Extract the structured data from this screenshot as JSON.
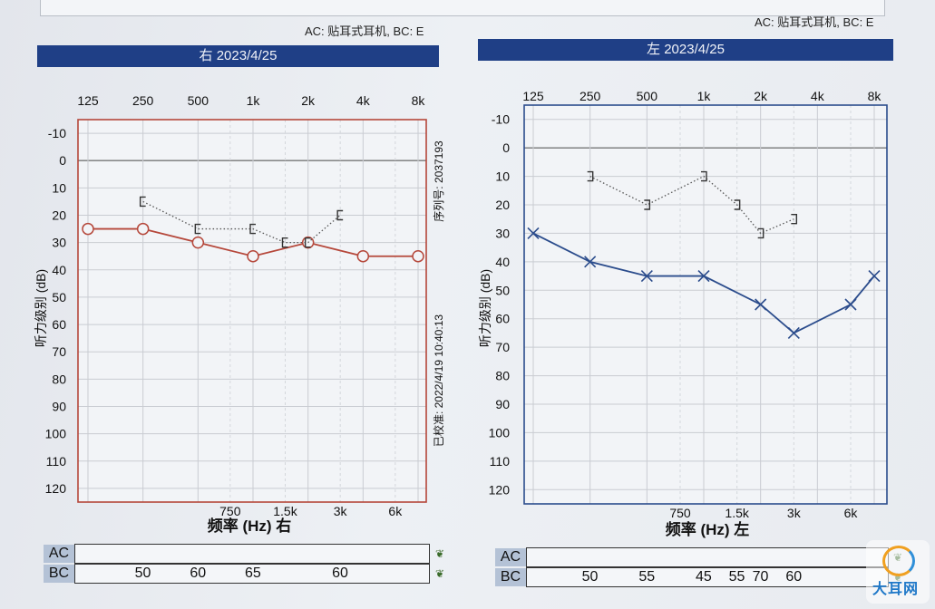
{
  "ac_note": "AC: 贴耳式耳机, BC: E",
  "charts_meta": {
    "right": {
      "header": "右 2023/4/25",
      "xlabel": "频率 (Hz) 右",
      "ylabel": "听力级别 (dB)",
      "side_text_1": "序列号: 2037193",
      "side_text_2": "已校准: 2022/4/19 10:40:13"
    },
    "left": {
      "header": "左 2023/4/25",
      "xlabel": "频率 (Hz) 左",
      "ylabel": "听力级别 (dB)"
    }
  },
  "table": {
    "ac_label": "AC",
    "bc_label": "BC",
    "right_bc_values": [
      {
        "freq": "250",
        "value": "50"
      },
      {
        "freq": "500",
        "value": "60"
      },
      {
        "freq": "1k",
        "value": "65"
      },
      {
        "freq": "3k",
        "value": "60"
      }
    ],
    "left_bc_values": [
      {
        "freq": "250",
        "value": "50"
      },
      {
        "freq": "500",
        "value": "55"
      },
      {
        "freq": "1k",
        "value": "45"
      },
      {
        "freq": "1.5k",
        "value": "55"
      },
      {
        "freq": "2k",
        "value": "70"
      },
      {
        "freq": "3k",
        "value": "60"
      }
    ]
  },
  "watermark": "大耳网",
  "colors": {
    "right_ear": "#b5473a",
    "left_ear": "#2b4c8c",
    "header_bg": "#1f3f86",
    "grid": "#c9ccd2"
  },
  "chart_data": [
    {
      "type": "line",
      "ear": "right",
      "title": "右 2023/4/25",
      "xlabel": "频率 (Hz) 右",
      "ylabel": "听力级别 (dB)",
      "x_top_ticks": [
        "125",
        "250",
        "500",
        "1k",
        "2k",
        "4k",
        "8k"
      ],
      "x_bottom_ticks": [
        "750",
        "1.5k",
        "3k",
        "6k"
      ],
      "y_ticks": [
        -10,
        0,
        10,
        20,
        30,
        40,
        50,
        60,
        70,
        80,
        90,
        100,
        110,
        120
      ],
      "ylim": [
        -15,
        125
      ],
      "y_inverted": true,
      "grid": true,
      "series": [
        {
          "name": "AC",
          "marker": "circle",
          "line": "solid",
          "points": [
            {
              "freq": "125",
              "db": 25
            },
            {
              "freq": "250",
              "db": 25
            },
            {
              "freq": "500",
              "db": 30
            },
            {
              "freq": "1k",
              "db": 35
            },
            {
              "freq": "2k",
              "db": 30
            },
            {
              "freq": "4k",
              "db": 35
            },
            {
              "freq": "8k",
              "db": 35
            }
          ]
        },
        {
          "name": "BC",
          "marker": "bracket",
          "line": "dotted",
          "points": [
            {
              "freq": "250",
              "db": 15
            },
            {
              "freq": "500",
              "db": 25
            },
            {
              "freq": "1k",
              "db": 25
            },
            {
              "freq": "1.5k",
              "db": 30
            },
            {
              "freq": "2k",
              "db": 30
            },
            {
              "freq": "3k",
              "db": 20
            }
          ]
        }
      ]
    },
    {
      "type": "line",
      "ear": "left",
      "title": "左 2023/4/25",
      "xlabel": "频率 (Hz) 左",
      "ylabel": "听力级别 (dB)",
      "x_top_ticks": [
        "125",
        "250",
        "500",
        "1k",
        "2k",
        "4k",
        "8k"
      ],
      "x_bottom_ticks": [
        "750",
        "1.5k",
        "3k",
        "6k"
      ],
      "y_ticks": [
        -10,
        0,
        10,
        20,
        30,
        40,
        50,
        60,
        70,
        80,
        90,
        100,
        110,
        120
      ],
      "ylim": [
        -15,
        125
      ],
      "y_inverted": true,
      "grid": true,
      "series": [
        {
          "name": "AC",
          "marker": "x",
          "line": "solid",
          "points": [
            {
              "freq": "125",
              "db": 30
            },
            {
              "freq": "250",
              "db": 40
            },
            {
              "freq": "500",
              "db": 45
            },
            {
              "freq": "1k",
              "db": 45
            },
            {
              "freq": "2k",
              "db": 55
            },
            {
              "freq": "3k",
              "db": 65
            },
            {
              "freq": "6k",
              "db": 55
            },
            {
              "freq": "8k",
              "db": 45
            }
          ]
        },
        {
          "name": "BC",
          "marker": "bracket",
          "line": "dotted",
          "points": [
            {
              "freq": "250",
              "db": 10
            },
            {
              "freq": "500",
              "db": 20
            },
            {
              "freq": "1k",
              "db": 10
            },
            {
              "freq": "1.5k",
              "db": 20
            },
            {
              "freq": "2k",
              "db": 30
            },
            {
              "freq": "3k",
              "db": 25
            }
          ]
        }
      ]
    }
  ]
}
